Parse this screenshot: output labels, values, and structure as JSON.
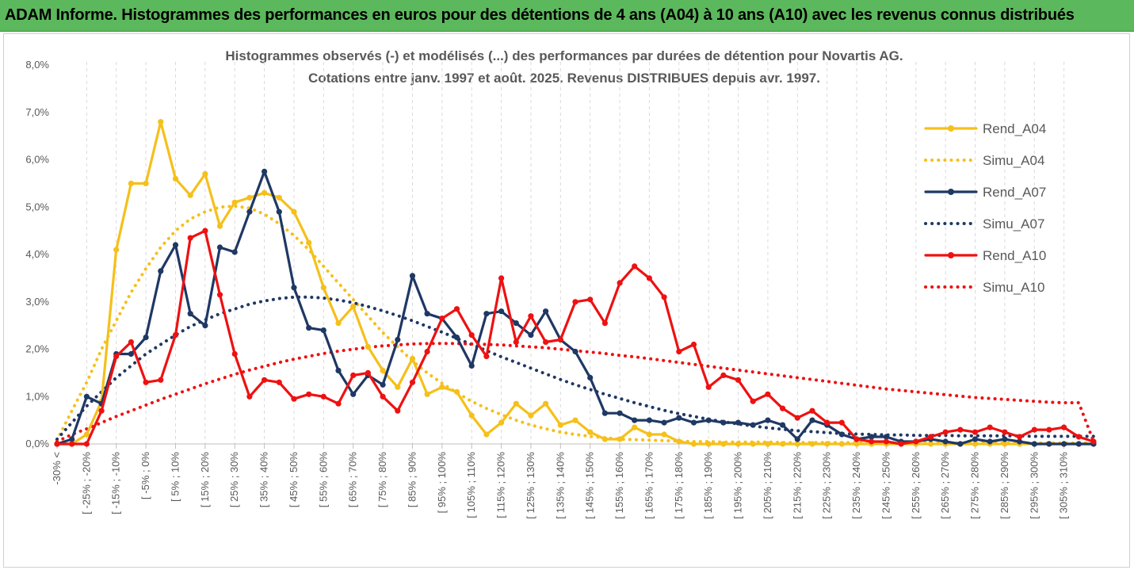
{
  "banner": {
    "title": "ADAM Informe. Histogrammes des performances en euros pour des détentions de 4 ans (A04) à 10 ans (A10) avec les revenus connus distribués",
    "color": "#5cb85c"
  },
  "chart_data": {
    "type": "line",
    "title": "Histogrammes observés (-) et modélisés (...) des performances par durées de détention pour Novartis AG.",
    "subtitle": "Cotations entre janv. 1997 et août. 2025. Revenus DISTRIBUES depuis avr. 1997.",
    "xlabel": "",
    "ylabel": "",
    "ylim": [
      0,
      8
    ],
    "y_ticks": [
      "0,0%",
      "1,0%",
      "2,0%",
      "3,0%",
      "4,0%",
      "5,0%",
      "6,0%",
      "7,0%",
      "8,0%"
    ],
    "grid": "vertical dashed",
    "legend_position": "right",
    "x_tick_labels": [
      "-30% <",
      "[ -25% ; -20%",
      "[ -15% ; -10%",
      "[ -5% ; 0%",
      "[ 5% ; 10%",
      "[ 15% ; 20%",
      "[ 25% ; 30%",
      "[ 35% ; 40%",
      "[ 45% ; 50%",
      "[ 55% ; 60%",
      "[ 65% ; 70%",
      "[ 75% ; 80%",
      "[ 85% ; 90%",
      "[ 95% ; 100%",
      "[ 105% ; 110%",
      "[ 115% ; 120%",
      "[ 125% ; 130%",
      "[ 135% ; 140%",
      "[ 145% ; 150%",
      "[ 155% ; 160%",
      "[ 165% ; 170%",
      "[ 175% ; 180%",
      "[ 185% ; 190%",
      "[ 195% ; 200%",
      "[ 205% ; 210%",
      "[ 215% ; 220%",
      "[ 225% ; 230%",
      "[ 235% ; 240%",
      "[ 245% ; 250%",
      "[ 255% ; 260%",
      "[ 265% ; 270%",
      "[ 275% ; 280%",
      "[ 285% ; 290%",
      "[ 295% ; 300%",
      "[ 305% ; 310%"
    ],
    "series": [
      {
        "name": "Rend_A04",
        "color": "#f5c01a",
        "style": "solid",
        "markers": true,
        "values": [
          0,
          0,
          0.2,
          0.9,
          4.1,
          5.5,
          5.5,
          6.8,
          5.6,
          5.25,
          5.7,
          4.6,
          5.1,
          5.2,
          5.3,
          5.2,
          4.9,
          4.25,
          3.3,
          2.55,
          2.9,
          2.05,
          1.55,
          1.2,
          1.8,
          1.05,
          1.2,
          1.1,
          0.6,
          0.2,
          0.45,
          0.85,
          0.6,
          0.85,
          0.4,
          0.5,
          0.25,
          0.1,
          0.1,
          0.35,
          0.2,
          0.2,
          0.05,
          0,
          0,
          0,
          0,
          0,
          0,
          0,
          0,
          0,
          0,
          0,
          0,
          0,
          0,
          0,
          0,
          0,
          0,
          0,
          0,
          0,
          0,
          0,
          0,
          0,
          0,
          0,
          0,
          0,
          0,
          0,
          0,
          0,
          0,
          0,
          0,
          0,
          0,
          0,
          0,
          0,
          0,
          0,
          0,
          0,
          0,
          0,
          0,
          0,
          0,
          0,
          0,
          0,
          0,
          0,
          0,
          0,
          0,
          0,
          0,
          0,
          0,
          0,
          0,
          0,
          0,
          0,
          0,
          0,
          0,
          0,
          0,
          0,
          0,
          0,
          0,
          0,
          0,
          0,
          0,
          0,
          0,
          0,
          0,
          0,
          0,
          0,
          0,
          0,
          0,
          0,
          0
        ]
      },
      {
        "name": "Simu_A04",
        "color": "#f5c01a",
        "style": "dotted",
        "markers": false,
        "values": [
          0.08,
          0.7,
          1.3,
          2.0,
          2.6,
          3.2,
          3.7,
          4.15,
          4.5,
          4.75,
          4.9,
          5.0,
          5.02,
          4.98,
          4.85,
          4.65,
          4.4,
          4.1,
          3.75,
          3.4,
          3.05,
          2.7,
          2.35,
          2.05,
          1.75,
          1.5,
          1.28,
          1.08,
          0.9,
          0.75,
          0.62,
          0.5,
          0.4,
          0.32,
          0.25,
          0.2,
          0.16,
          0.13,
          0.1,
          0.09,
          0.08,
          0.07,
          0.06,
          0.05,
          0.05,
          0.04,
          0.04,
          0.04,
          0.04,
          0.03,
          0.03,
          0.03,
          0.03,
          0.03,
          0.03,
          0.03,
          0.03,
          0.03,
          0.03,
          0.02,
          0.02,
          0.02,
          0.02,
          0.02,
          0.02,
          0.02,
          0.02,
          0.02,
          0.02,
          0.02,
          0.02,
          0.02,
          0.02,
          0.02,
          0.02,
          0.02,
          0.02,
          0.02,
          0.02,
          0.02,
          0.02,
          0.02,
          0.02,
          0.02,
          0.02,
          0.02,
          0.02,
          0.02,
          0.02,
          0.02,
          0.02,
          0.02,
          0.02,
          0.02,
          0.02,
          0.02,
          0.02,
          0.02,
          0.02,
          0.02,
          0.02,
          0.02,
          0.02,
          0.02,
          0.02,
          0.02,
          0.02,
          0.02,
          0.02,
          0.02,
          0.02,
          0.02,
          0.02,
          0.02,
          0.02,
          0.02,
          0.02,
          0.02,
          0.02,
          0.02,
          0.02,
          0.02,
          0.02,
          0.02,
          0.02,
          0.02,
          0.02,
          0.02,
          0.02,
          0.02,
          0.02,
          0.02,
          0.02,
          0.02,
          0.02
        ]
      },
      {
        "name": "Rend_A07",
        "color": "#1f3864",
        "style": "solid",
        "markers": true,
        "values": [
          0,
          0.1,
          1.0,
          0.85,
          1.9,
          1.9,
          2.25,
          3.65,
          4.2,
          2.75,
          2.5,
          4.15,
          4.05,
          4.9,
          5.75,
          4.9,
          3.3,
          2.45,
          2.4,
          1.55,
          1.05,
          1.45,
          1.25,
          2.2,
          3.55,
          2.75,
          2.65,
          2.25,
          1.65,
          2.75,
          2.8,
          2.55,
          2.3,
          2.8,
          2.2,
          1.95,
          1.4,
          0.65,
          0.65,
          0.5,
          0.5,
          0.45,
          0.55,
          0.45,
          0.5,
          0.45,
          0.45,
          0.4,
          0.5,
          0.4,
          0.1,
          0.5,
          0.4,
          0.2,
          0.1,
          0.15,
          0.15,
          0.05,
          0.05,
          0.1,
          0.05,
          0,
          0.1,
          0.05,
          0.1,
          0.05,
          0,
          0,
          0,
          0,
          0,
          0,
          0,
          0,
          0,
          0,
          0,
          0,
          0,
          0,
          0,
          0,
          0,
          0,
          0,
          0,
          0,
          0,
          0,
          0,
          0,
          0,
          0,
          0,
          0,
          0,
          0,
          0,
          0,
          0,
          0,
          0,
          0,
          0,
          0,
          0,
          0,
          0,
          0,
          0,
          0,
          0,
          0,
          0,
          0,
          0,
          0,
          0,
          0,
          0,
          0,
          0,
          0,
          0,
          0,
          0,
          0,
          0,
          0,
          0,
          0,
          0,
          0,
          0,
          0,
          0
        ]
      },
      {
        "name": "Simu_A07",
        "color": "#1f3864",
        "style": "dotted",
        "markers": false,
        "values": [
          0.1,
          0.45,
          0.8,
          1.1,
          1.4,
          1.65,
          1.9,
          2.1,
          2.3,
          2.48,
          2.62,
          2.75,
          2.85,
          2.95,
          3.02,
          3.07,
          3.1,
          3.1,
          3.08,
          3.04,
          2.98,
          2.9,
          2.81,
          2.71,
          2.6,
          2.48,
          2.36,
          2.23,
          2.1,
          1.97,
          1.84,
          1.72,
          1.6,
          1.48,
          1.36,
          1.25,
          1.15,
          1.05,
          0.96,
          0.87,
          0.79,
          0.71,
          0.64,
          0.58,
          0.52,
          0.47,
          0.42,
          0.38,
          0.34,
          0.31,
          0.28,
          0.26,
          0.24,
          0.22,
          0.21,
          0.2,
          0.19,
          0.19,
          0.18,
          0.18,
          0.18,
          0.17,
          0.17,
          0.17,
          0.17,
          0.17,
          0.16,
          0.16,
          0.16,
          0.16,
          0.16,
          0.16,
          0.16,
          0.16,
          0.16,
          0.16,
          0.16,
          0.16,
          0.16,
          0.16,
          0.16,
          0.16,
          0.16,
          0.16,
          0.16,
          0.16,
          0.16,
          0.16,
          0.16,
          0.16,
          0.16,
          0.16,
          0.16,
          0.16,
          0.16,
          0.16,
          0.16,
          0.16,
          0.16,
          0.16,
          0.16,
          0.16,
          0.16,
          0.16,
          0.16,
          0.16,
          0.16,
          0.16,
          0.16,
          0.16,
          0.16,
          0.16,
          0.16,
          0.16,
          0.16,
          0.16,
          0.16,
          0.16,
          0.16,
          0.16,
          0.16,
          0.16,
          0.16,
          0.16,
          0.16,
          0.16,
          0.16,
          0.16,
          0.16,
          0.16,
          0.16,
          0.16,
          0.16,
          0.16
        ]
      },
      {
        "name": "Rend_A10",
        "color": "#ee1111",
        "style": "solid",
        "markers": true,
        "values": [
          0,
          0,
          0,
          0.7,
          1.85,
          2.15,
          1.3,
          1.35,
          2.3,
          4.35,
          4.5,
          3.15,
          1.9,
          1.0,
          1.35,
          1.3,
          0.95,
          1.05,
          1.0,
          0.85,
          1.45,
          1.5,
          1.0,
          0.7,
          1.3,
          1.95,
          2.65,
          2.85,
          2.3,
          1.85,
          3.5,
          2.15,
          2.7,
          2.15,
          2.2,
          3.0,
          3.05,
          2.55,
          3.4,
          3.75,
          3.5,
          3.1,
          1.95,
          2.1,
          1.2,
          1.45,
          1.35,
          0.9,
          1.05,
          0.75,
          0.55,
          0.7,
          0.45,
          0.45,
          0.1,
          0.05,
          0.05,
          0.0,
          0.05,
          0.15,
          0.25,
          0.3,
          0.25,
          0.35,
          0.25,
          0.15,
          0.3,
          0.3,
          0.35,
          0.15,
          0.05
        ]
      },
      {
        "name": "Simu_A10",
        "color": "#ee1111",
        "style": "dotted",
        "markers": false,
        "values": [
          0.05,
          0.2,
          0.32,
          0.45,
          0.58,
          0.7,
          0.82,
          0.94,
          1.05,
          1.16,
          1.27,
          1.37,
          1.47,
          1.56,
          1.64,
          1.72,
          1.79,
          1.85,
          1.91,
          1.96,
          2.0,
          2.04,
          2.07,
          2.09,
          2.11,
          2.12,
          2.12,
          2.12,
          2.11,
          2.1,
          2.09,
          2.07,
          2.05,
          2.03,
          2.0,
          1.97,
          1.94,
          1.91,
          1.87,
          1.84,
          1.8,
          1.76,
          1.72,
          1.68,
          1.64,
          1.6,
          1.56,
          1.52,
          1.48,
          1.44,
          1.4,
          1.36,
          1.32,
          1.28,
          1.24,
          1.2,
          1.16,
          1.13,
          1.1,
          1.07,
          1.04,
          1.01,
          0.98,
          0.96,
          0.94,
          0.92,
          0.9,
          0.88,
          0.87,
          0.87,
          0.05
        ]
      }
    ]
  }
}
